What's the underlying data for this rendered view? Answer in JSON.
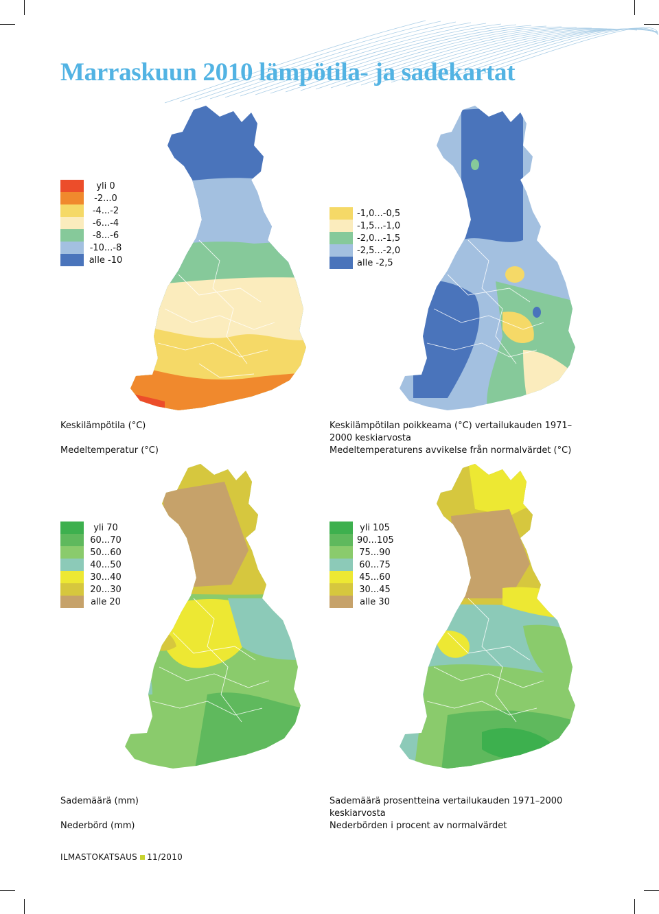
{
  "title": "Marraskuun 2010 lämpötila- ja sadekartat",
  "maps": {
    "temperature": {
      "caption_fi": "Keskilämpötila (°C)",
      "caption_sv": "Medeltemperatur (°C)",
      "legend": [
        {
          "label": "yli 0",
          "color": "#ec4d2a"
        },
        {
          "label": "-2...0",
          "color": "#f0892d"
        },
        {
          "label": "-4...-2",
          "color": "#f5d967"
        },
        {
          "label": "-6...-4",
          "color": "#fbecbd"
        },
        {
          "label": "-8...-6",
          "color": "#86c99a"
        },
        {
          "label": "-10...-8",
          "color": "#a3c0e0"
        },
        {
          "label": "alle -10",
          "color": "#4a74bb"
        }
      ]
    },
    "temperature_anomaly": {
      "caption_fi_line1": "Keskilämpötilan poikkeama (°C) vertailukauden 1971–",
      "caption_fi_line2": "2000 keskiarvosta",
      "caption_sv": "Medeltemperaturens avvikelse från normalvärdet (°C)",
      "legend": [
        {
          "label": "-1,0...-0,5",
          "color": "#f5d967"
        },
        {
          "label": "-1,5...-1,0",
          "color": "#fbecbd"
        },
        {
          "label": "-2,0...-1,5",
          "color": "#86c99a"
        },
        {
          "label": "-2,5...-2,0",
          "color": "#a3c0e0"
        },
        {
          "label": "alle -2,5",
          "color": "#4a74bb"
        }
      ]
    },
    "precipitation": {
      "caption_fi": "Sademäärä (mm)",
      "caption_sv": "Nederbörd (mm)",
      "legend": [
        {
          "label": "yli 70",
          "color": "#3db04e"
        },
        {
          "label": "60...70",
          "color": "#5fb95d"
        },
        {
          "label": "50...60",
          "color": "#8acb6c"
        },
        {
          "label": "40...50",
          "color": "#8ccab8"
        },
        {
          "label": "30...40",
          "color": "#ede833"
        },
        {
          "label": "20...30",
          "color": "#d6c73e"
        },
        {
          "label": "alle 20",
          "color": "#c6a26a"
        }
      ]
    },
    "precipitation_percent": {
      "caption_fi_line1": "Sademäärä prosentteina vertailukauden 1971–2000",
      "caption_fi_line2": "keskiarvosta",
      "caption_sv": "Nederbörden i procent av normalvärdet",
      "legend": [
        {
          "label": "yli 105",
          "color": "#3db04e"
        },
        {
          "label": "90...105",
          "color": "#5fb95d"
        },
        {
          "label": "75...90",
          "color": "#8acb6c"
        },
        {
          "label": "60...75",
          "color": "#8ccab8"
        },
        {
          "label": "45...60",
          "color": "#ede833"
        },
        {
          "label": "30...45",
          "color": "#d6c73e"
        },
        {
          "label": "alle 30",
          "color": "#c6a26a"
        }
      ]
    }
  },
  "footer": {
    "publication": "ILMASTOKATSAUS",
    "issue": "11/2010"
  },
  "colors": {
    "title": "#52b3e3",
    "footer_square": "#c7d32f",
    "deco_lines": "#a9cde6",
    "borders": "#ffffff"
  }
}
